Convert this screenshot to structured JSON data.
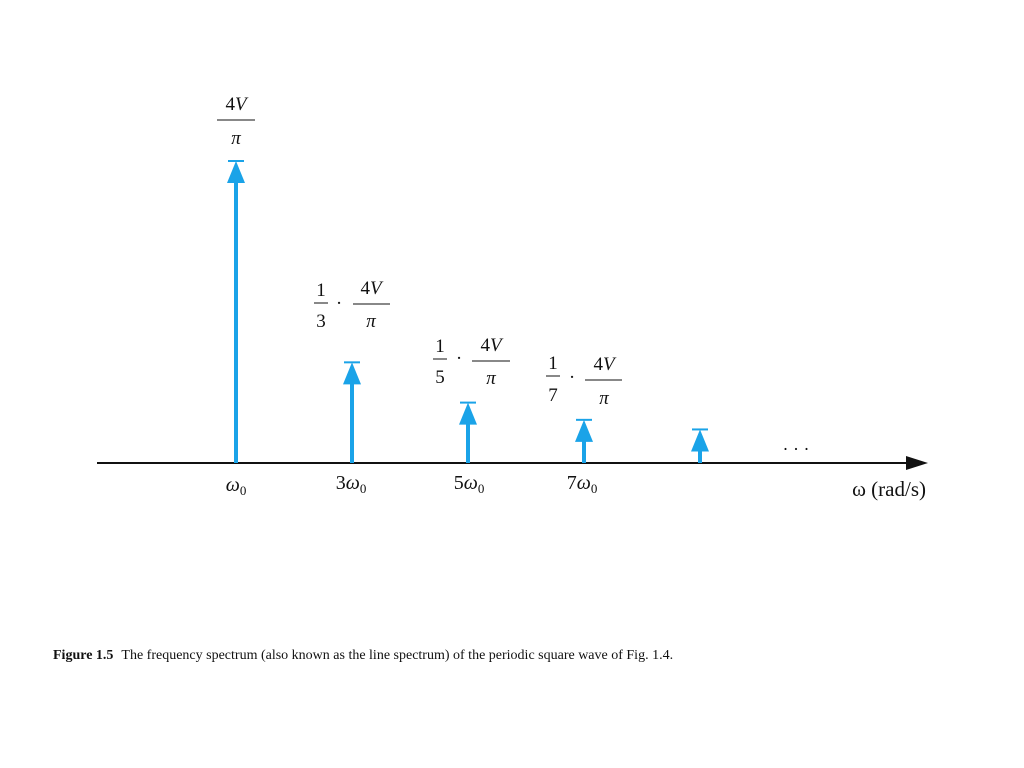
{
  "figure": {
    "axis_label": "ω (rad/s)",
    "ellipsis": "· · ·",
    "caption_label": "Figure 1.5",
    "caption_text": "The frequency spectrum (also known as the line spectrum) of the periodic square wave of Fig. 1.4."
  },
  "chart_data": {
    "type": "line spectrum",
    "x_unit": "rad/s",
    "lines": [
      {
        "harmonic": 1,
        "tick_label": "ω0",
        "amplitude_label": "4V/π",
        "relative_amplitude": 1.0
      },
      {
        "harmonic": 3,
        "tick_label": "3ω0",
        "amplitude_label": "1/3 · 4V/π",
        "relative_amplitude": 0.3333
      },
      {
        "harmonic": 5,
        "tick_label": "5ω0",
        "amplitude_label": "1/5 · 4V/π",
        "relative_amplitude": 0.2
      },
      {
        "harmonic": 7,
        "tick_label": "7ω0",
        "amplitude_label": "1/7 · 4V/π",
        "relative_amplitude": 0.1429
      },
      {
        "harmonic": 9,
        "tick_label": "",
        "amplitude_label": "",
        "relative_amplitude": 0.1111
      }
    ],
    "colors": {
      "line": "#1aa3e8",
      "axis": "#111111"
    }
  }
}
